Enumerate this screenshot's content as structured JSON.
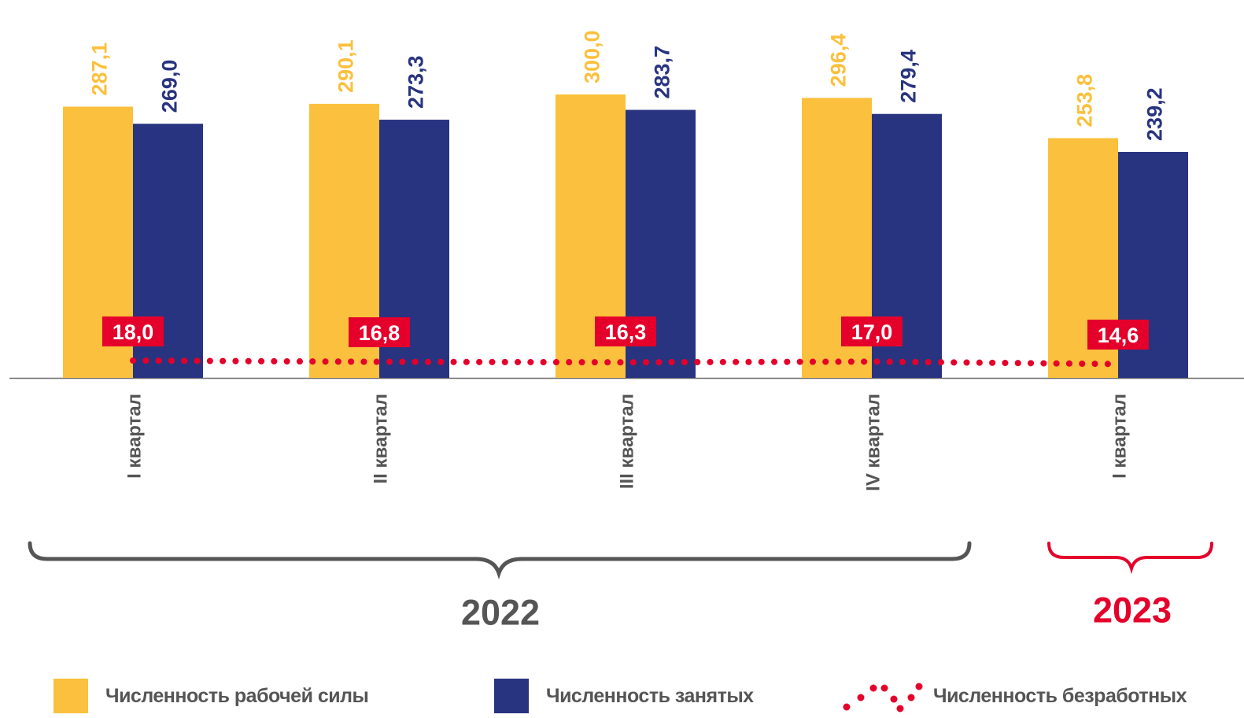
{
  "chart_data": {
    "type": "bar",
    "categories": [
      "I квартал",
      "II квартал",
      "III квартал",
      "IV квартал",
      "I квартал"
    ],
    "groups": [
      {
        "label": "2022",
        "color": "#555555",
        "categories": [
          "I квартал",
          "II квартал",
          "III квартал",
          "IV квартал"
        ]
      },
      {
        "label": "2023",
        "color": "#e4002b",
        "categories": [
          "I квартал"
        ]
      }
    ],
    "series": [
      {
        "name": "Численность рабочей силы",
        "type": "bar",
        "color": "#fbc03d",
        "values": [
          287.1,
          290.1,
          300.0,
          296.4,
          253.8
        ],
        "labels": [
          "287,1",
          "290,1",
          "300,0",
          "296,4",
          "253,8"
        ]
      },
      {
        "name": "Численность занятых",
        "type": "bar",
        "color": "#283480",
        "values": [
          269.0,
          273.3,
          283.7,
          279.4,
          239.2
        ],
        "labels": [
          "269,0",
          "273,3",
          "283,7",
          "279,4",
          "239,2"
        ]
      },
      {
        "name": "Численность безработных",
        "type": "line",
        "style": "dotted",
        "color": "#e4002b",
        "values": [
          18.0,
          16.8,
          16.3,
          17.0,
          14.6
        ],
        "labels": [
          "18,0",
          "16,8",
          "16,3",
          "17,0",
          "14,6"
        ]
      }
    ],
    "grid": false,
    "legend_position": "bottom"
  }
}
